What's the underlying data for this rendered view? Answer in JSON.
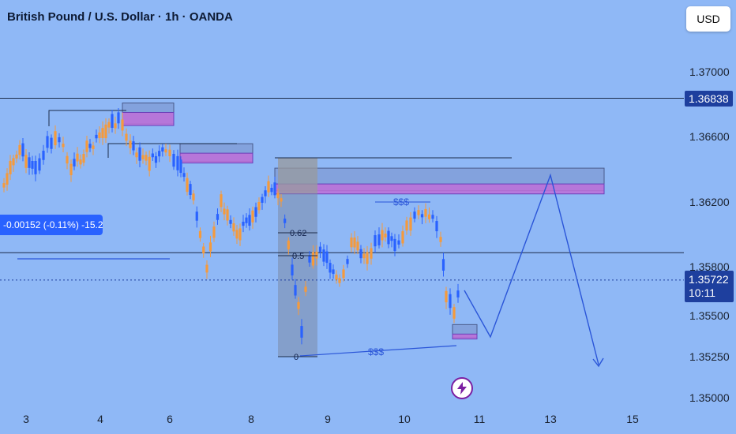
{
  "header": {
    "title": "British Pound / U.S. Dollar · 1h · OANDA",
    "currency_button": "USD"
  },
  "measure_tooltip": "-0.00152 (-0.11%) -15.2",
  "price_tags": {
    "level_line": "1.36838",
    "current_price": "1.35722",
    "countdown": "10:11"
  },
  "colors": {
    "background": "#8fb8f6",
    "up_candle": "#2962ff",
    "down_candle": "#f59a3c",
    "zone_fill": "#c06fd8",
    "zone_border": "#6a3fb8",
    "drawing": "#2a55d8",
    "tag_bg": "#1e3f9e"
  },
  "icons": {
    "flash": "lightning-bolt-icon"
  },
  "chart_data": {
    "type": "candlestick",
    "symbol": "British Pound / U.S. Dollar",
    "interval": "1h",
    "source": "OANDA",
    "x_ticks": [
      "3",
      "4",
      "6",
      "8",
      "9",
      "10",
      "11",
      "13",
      "15"
    ],
    "y_ticks": [
      "1.37000",
      "1.36600",
      "1.36200",
      "1.35800",
      "1.35500",
      "1.35250",
      "1.35000"
    ],
    "ylim": [
      1.3495,
      1.3732
    ],
    "horizontal_lines": [
      1.36838,
      1.3589
    ],
    "current_price": 1.35722,
    "fib_labels": [
      {
        "label": "0.62",
        "price": 1.3602
      },
      {
        "label": "0.5",
        "price": 1.3588
      },
      {
        "label": "0",
        "price": 1.35265
      }
    ],
    "liquidity_labels": [
      {
        "label": "$$$",
        "price": 1.362
      },
      {
        "label": "$$$",
        "price": 1.353
      }
    ],
    "zones": [
      {
        "x0": 155,
        "x1": 220,
        "top": 1.3677,
        "bottom": 1.3668
      },
      {
        "x0": 228,
        "x1": 320,
        "top": 1.3652,
        "bottom": 1.3645
      },
      {
        "x0": 348,
        "x1": 765,
        "top": 1.3637,
        "bottom": 1.3627
      },
      {
        "x0": 573,
        "x1": 604,
        "top": 1.3541,
        "bottom": 1.3537
      }
    ],
    "projection_path": [
      {
        "x": 588,
        "price": 1.3566
      },
      {
        "x": 621,
        "price": 1.3537
      },
      {
        "x": 697,
        "price": 1.3639
      },
      {
        "x": 758,
        "price": 1.3518
      }
    ]
  }
}
